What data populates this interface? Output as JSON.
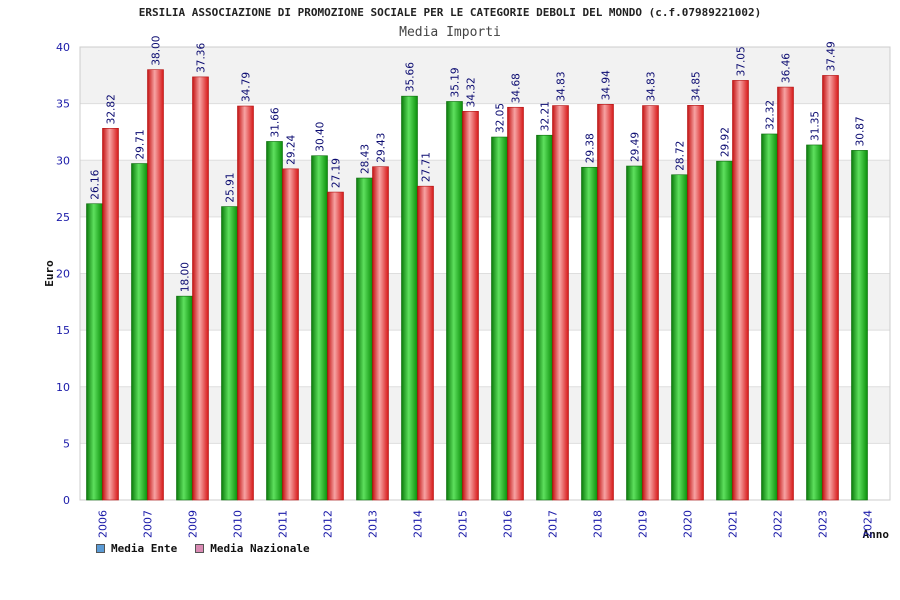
{
  "chart_data": {
    "type": "bar",
    "title": "ERSILIA ASSOCIAZIONE DI PROMOZIONE SOCIALE PER LE CATEGORIE DEBOLI DEL MONDO (c.f.07989221002)",
    "subtitle": "Media Importi",
    "xlabel": "Anno",
    "ylabel": "Euro",
    "ylim": [
      0,
      40
    ],
    "yticks": [
      "0",
      "5",
      "10",
      "15",
      "20",
      "25",
      "30",
      "35",
      "40"
    ],
    "grid": true,
    "legend_position": "bottom-left",
    "categories": [
      "2006",
      "2007",
      "2009",
      "2010",
      "2011",
      "2012",
      "2013",
      "2014",
      "2015",
      "2016",
      "2017",
      "2018",
      "2019",
      "2020",
      "2021",
      "2022",
      "2023",
      "2024"
    ],
    "series": [
      {
        "name": "Media Ente",
        "legend_color": "#5b9bd5",
        "bar_color": "#1db31d",
        "values": [
          26.16,
          29.71,
          18.0,
          25.91,
          31.66,
          30.4,
          28.43,
          35.66,
          35.19,
          32.05,
          32.21,
          29.38,
          29.49,
          28.72,
          29.92,
          32.32,
          31.35,
          30.87
        ],
        "labels": [
          "26.16",
          "29.71",
          "18.00",
          "25.91",
          "31.66",
          "30.40",
          "28.43",
          "35.66",
          "35.19",
          "32.05",
          "32.21",
          "29.38",
          "29.49",
          "28.72",
          "29.92",
          "32.32",
          "31.35",
          "30.87"
        ]
      },
      {
        "name": "Media Nazionale",
        "legend_color": "#d98ab3",
        "bar_color": "#ee2a2a",
        "values": [
          32.82,
          38.0,
          37.36,
          34.79,
          29.24,
          27.19,
          29.43,
          27.71,
          34.32,
          34.68,
          34.83,
          34.94,
          34.83,
          34.85,
          37.05,
          36.46,
          37.49,
          null
        ],
        "labels": [
          "32.82",
          "38.00",
          "37.36",
          "34.79",
          "29.24",
          "27.19",
          "29.43",
          "27.71",
          "34.32",
          "34.68",
          "34.83",
          "34.94",
          "34.83",
          "34.85",
          "37.05",
          "36.46",
          "37.49",
          ""
        ]
      }
    ]
  }
}
